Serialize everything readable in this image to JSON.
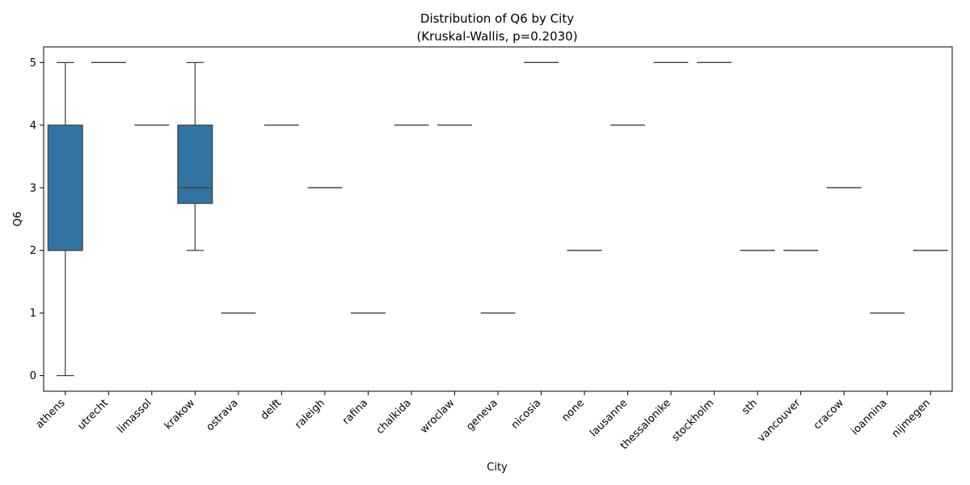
{
  "chart_data": {
    "type": "box",
    "title": "Distribution of Q6 by City",
    "subtitle": "(Kruskal-Wallis, p=0.2030)",
    "xlabel": "City",
    "ylabel": "Q6",
    "ylim": [
      -0.25,
      5.25
    ],
    "yticks": [
      0,
      1,
      2,
      3,
      4,
      5
    ],
    "box_color": "#3274a1",
    "line_color": "#3f3f3f",
    "categories": [
      "athens",
      "utrecht",
      "limassol",
      "krakow",
      "ostrava",
      "delft",
      "raleigh",
      "rafina",
      "chalkida",
      "wroclaw",
      "geneva",
      "nicosia",
      "none",
      "lausanne",
      "thessalonike",
      "stockholm",
      "sth",
      "vancouver",
      "cracow",
      "ioannina",
      "nijmegen"
    ],
    "boxes": [
      {
        "city": "athens",
        "whisker_low": 0,
        "q1": 2,
        "median": 2,
        "q3": 4,
        "whisker_high": 5
      },
      {
        "city": "utrecht",
        "whisker_low": 5,
        "q1": 5,
        "median": 5,
        "q3": 5,
        "whisker_high": 5
      },
      {
        "city": "limassol",
        "whisker_low": 4,
        "q1": 4,
        "median": 4,
        "q3": 4,
        "whisker_high": 4
      },
      {
        "city": "krakow",
        "whisker_low": 2,
        "q1": 2.75,
        "median": 3,
        "q3": 4,
        "whisker_high": 5
      },
      {
        "city": "ostrava",
        "whisker_low": 1,
        "q1": 1,
        "median": 1,
        "q3": 1,
        "whisker_high": 1
      },
      {
        "city": "delft",
        "whisker_low": 4,
        "q1": 4,
        "median": 4,
        "q3": 4,
        "whisker_high": 4
      },
      {
        "city": "raleigh",
        "whisker_low": 3,
        "q1": 3,
        "median": 3,
        "q3": 3,
        "whisker_high": 3
      },
      {
        "city": "rafina",
        "whisker_low": 1,
        "q1": 1,
        "median": 1,
        "q3": 1,
        "whisker_high": 1
      },
      {
        "city": "chalkida",
        "whisker_low": 4,
        "q1": 4,
        "median": 4,
        "q3": 4,
        "whisker_high": 4
      },
      {
        "city": "wroclaw",
        "whisker_low": 4,
        "q1": 4,
        "median": 4,
        "q3": 4,
        "whisker_high": 4
      },
      {
        "city": "geneva",
        "whisker_low": 1,
        "q1": 1,
        "median": 1,
        "q3": 1,
        "whisker_high": 1
      },
      {
        "city": "nicosia",
        "whisker_low": 5,
        "q1": 5,
        "median": 5,
        "q3": 5,
        "whisker_high": 5
      },
      {
        "city": "none",
        "whisker_low": 2,
        "q1": 2,
        "median": 2,
        "q3": 2,
        "whisker_high": 2
      },
      {
        "city": "lausanne",
        "whisker_low": 4,
        "q1": 4,
        "median": 4,
        "q3": 4,
        "whisker_high": 4
      },
      {
        "city": "thessalonike",
        "whisker_low": 5,
        "q1": 5,
        "median": 5,
        "q3": 5,
        "whisker_high": 5
      },
      {
        "city": "stockholm",
        "whisker_low": 5,
        "q1": 5,
        "median": 5,
        "q3": 5,
        "whisker_high": 5
      },
      {
        "city": "sth",
        "whisker_low": 2,
        "q1": 2,
        "median": 2,
        "q3": 2,
        "whisker_high": 2
      },
      {
        "city": "vancouver",
        "whisker_low": 2,
        "q1": 2,
        "median": 2,
        "q3": 2,
        "whisker_high": 2
      },
      {
        "city": "cracow",
        "whisker_low": 3,
        "q1": 3,
        "median": 3,
        "q3": 3,
        "whisker_high": 3
      },
      {
        "city": "ioannina",
        "whisker_low": 1,
        "q1": 1,
        "median": 1,
        "q3": 1,
        "whisker_high": 1
      },
      {
        "city": "nijmegen",
        "whisker_low": 2,
        "q1": 2,
        "median": 2,
        "q3": 2,
        "whisker_high": 2
      }
    ]
  }
}
